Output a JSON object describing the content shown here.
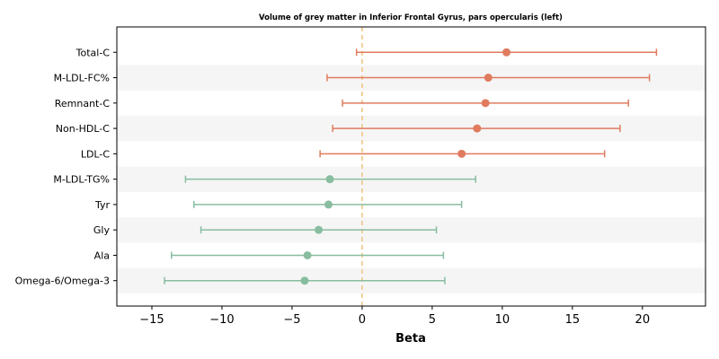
{
  "chart_data": {
    "type": "forest",
    "title": "Volume of grey matter in Inferior Frontal Gyrus, pars opercularis (left)",
    "xlabel": "Beta",
    "ylabel": "",
    "xlim": [
      -17.5,
      24.5
    ],
    "xticks": [
      -15,
      -10,
      -5,
      0,
      5,
      10,
      15,
      20
    ],
    "xtick_labels": [
      "−15",
      "−10",
      "−5",
      "0",
      "5",
      "10",
      "15",
      "20"
    ],
    "reference_line": 0,
    "grid": false,
    "row_striping": true,
    "colors": {
      "positive": "#e07b5f",
      "negative": "#88bda0",
      "reference": "#f0c27b",
      "stripe": "#f5f5f5"
    },
    "rows": [
      {
        "label": "Total-C",
        "beta": 10.3,
        "lower": -0.4,
        "upper": 21.0,
        "group": "positive"
      },
      {
        "label": "M-LDL-FC%",
        "beta": 9.0,
        "lower": -2.5,
        "upper": 20.5,
        "group": "positive"
      },
      {
        "label": "Remnant-C",
        "beta": 8.8,
        "lower": -1.4,
        "upper": 19.0,
        "group": "positive"
      },
      {
        "label": "Non-HDL-C",
        "beta": 8.2,
        "lower": -2.1,
        "upper": 18.4,
        "group": "positive"
      },
      {
        "label": "LDL-C",
        "beta": 7.1,
        "lower": -3.0,
        "upper": 17.3,
        "group": "positive"
      },
      {
        "label": "M-LDL-TG%",
        "beta": -2.3,
        "lower": -12.6,
        "upper": 8.1,
        "group": "negative"
      },
      {
        "label": "Tyr",
        "beta": -2.4,
        "lower": -12.0,
        "upper": 7.1,
        "group": "negative"
      },
      {
        "label": "Gly",
        "beta": -3.1,
        "lower": -11.5,
        "upper": 5.3,
        "group": "negative"
      },
      {
        "label": "Ala",
        "beta": -3.9,
        "lower": -13.6,
        "upper": 5.8,
        "group": "negative"
      },
      {
        "label": "Omega-6/Omega-3",
        "beta": -4.1,
        "lower": -14.1,
        "upper": 5.9,
        "group": "negative"
      }
    ]
  }
}
